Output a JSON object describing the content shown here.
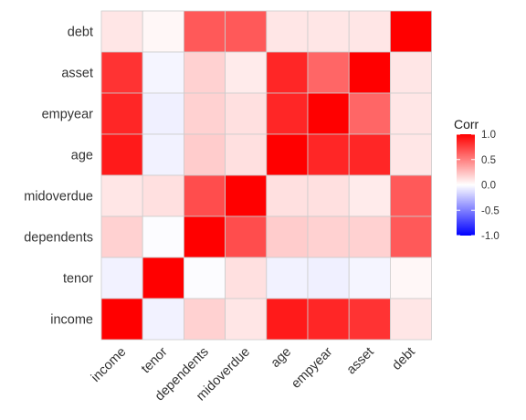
{
  "chart_data": {
    "type": "heatmap",
    "title": "",
    "xlabel": "",
    "ylabel": "",
    "x_categories": [
      "income",
      "tenor",
      "dependents",
      "midoverdue",
      "age",
      "empyear",
      "asset",
      "debt"
    ],
    "y_categories_top_to_bottom": [
      "debt",
      "asset",
      "empyear",
      "age",
      "midoverdue",
      "dependents",
      "tenor",
      "income"
    ],
    "variables": [
      "income",
      "tenor",
      "dependents",
      "midoverdue",
      "age",
      "empyear",
      "asset",
      "debt"
    ],
    "matrix": [
      [
        1.0,
        -0.05,
        0.18,
        0.1,
        0.9,
        0.85,
        0.8,
        0.1
      ],
      [
        -0.05,
        1.0,
        -0.01,
        0.12,
        -0.05,
        -0.06,
        -0.04,
        0.03
      ],
      [
        0.18,
        -0.01,
        1.0,
        0.7,
        0.2,
        0.18,
        0.18,
        0.65
      ],
      [
        0.1,
        0.12,
        0.7,
        1.0,
        0.12,
        0.12,
        0.08,
        0.65
      ],
      [
        0.9,
        -0.05,
        0.2,
        0.12,
        1.0,
        0.85,
        0.85,
        0.1
      ],
      [
        0.85,
        -0.06,
        0.18,
        0.12,
        0.85,
        1.0,
        0.6,
        0.1
      ],
      [
        0.8,
        -0.04,
        0.18,
        0.08,
        0.85,
        0.6,
        1.0,
        0.1
      ],
      [
        0.1,
        0.03,
        0.65,
        0.65,
        0.1,
        0.1,
        0.1,
        1.0
      ]
    ],
    "legend": {
      "title": "Corr",
      "ticks": [
        "1.0",
        "0.5",
        "0.0",
        "-0.5",
        "-1.0"
      ],
      "tick_values": [
        1.0,
        0.5,
        0.0,
        -0.5,
        -1.0
      ],
      "range": [
        -1,
        1
      ],
      "colors": {
        "low": "#0000ff",
        "mid": "#ffffff",
        "high": "#ff0000"
      },
      "placement": "right"
    },
    "grid": true
  }
}
